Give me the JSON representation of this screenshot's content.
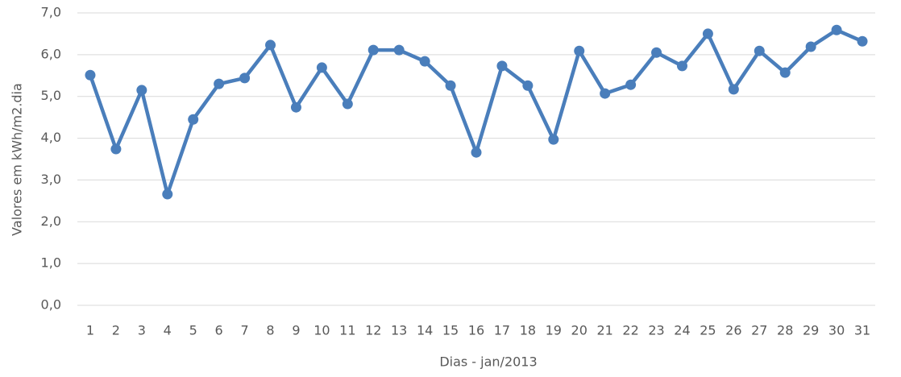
{
  "chart_data": {
    "type": "line",
    "x_label": "Dias - jan/2013",
    "y_label": "Valores em kWh/m2.dia",
    "categories": [
      "1",
      "2",
      "3",
      "4",
      "5",
      "6",
      "7",
      "8",
      "9",
      "10",
      "11",
      "12",
      "13",
      "14",
      "15",
      "16",
      "17",
      "18",
      "19",
      "20",
      "21",
      "22",
      "23",
      "24",
      "25",
      "26",
      "27",
      "28",
      "29",
      "30",
      "31"
    ],
    "series": [
      {
        "color": "#4a7ebb",
        "values": [
          5.51,
          3.74,
          5.15,
          2.66,
          4.45,
          5.3,
          5.44,
          6.23,
          4.74,
          5.69,
          4.82,
          6.11,
          6.11,
          5.84,
          5.26,
          3.66,
          5.73,
          5.26,
          3.97,
          6.09,
          5.07,
          5.28,
          6.05,
          5.73,
          6.5,
          5.17,
          6.09,
          5.57,
          6.19,
          6.59,
          6.32
        ]
      }
    ],
    "ylim": [
      0,
      7
    ],
    "yticks": [
      {
        "value": 0,
        "label": "0,0"
      },
      {
        "value": 1,
        "label": "1,0"
      },
      {
        "value": 2,
        "label": "2,0"
      },
      {
        "value": 3,
        "label": "3,0"
      },
      {
        "value": 4,
        "label": "4,0"
      },
      {
        "value": 5,
        "label": "5,0"
      },
      {
        "value": 6,
        "label": "6,0"
      },
      {
        "value": 7,
        "label": "7,0"
      }
    ],
    "grid": true
  }
}
